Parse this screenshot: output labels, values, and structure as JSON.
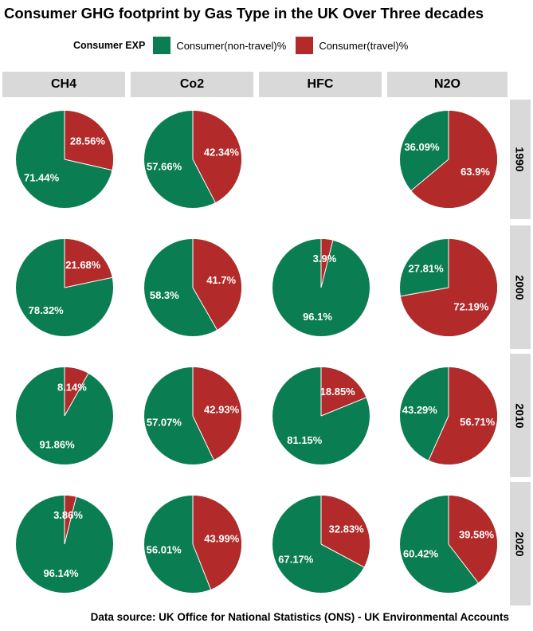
{
  "title": "Consumer GHG footprint by Gas Type in the UK Over Three decades",
  "caption": "Data source: UK Office for National Statistics (ONS) - UK Environmental Accounts",
  "legend": {
    "title": "Consumer EXP",
    "items": [
      {
        "label": "Consumer(non-travel)%",
        "color": "#0b7d52"
      },
      {
        "label": "Consumer(travel)%",
        "color": "#b22a2a"
      }
    ]
  },
  "chart_data": {
    "type": "pie",
    "facet_cols": [
      "CH4",
      "Co2",
      "HFC",
      "N2O"
    ],
    "facet_rows": [
      "1990",
      "2000",
      "2010",
      "2020"
    ],
    "series_names": [
      "Consumer(non-travel)%",
      "Consumer(travel)%"
    ],
    "panels": [
      {
        "col": "CH4",
        "row": "1990",
        "non_travel": 71.44,
        "travel": 28.56
      },
      {
        "col": "Co2",
        "row": "1990",
        "non_travel": 57.66,
        "travel": 42.34
      },
      {
        "col": "HFC",
        "row": "1990",
        "non_travel": null,
        "travel": null
      },
      {
        "col": "N2O",
        "row": "1990",
        "non_travel": 36.09,
        "travel": 63.9
      },
      {
        "col": "CH4",
        "row": "2000",
        "non_travel": 78.32,
        "travel": 21.68
      },
      {
        "col": "Co2",
        "row": "2000",
        "non_travel": 58.3,
        "travel": 41.7
      },
      {
        "col": "HFC",
        "row": "2000",
        "non_travel": 96.1,
        "travel": 3.9
      },
      {
        "col": "N2O",
        "row": "2000",
        "non_travel": 27.81,
        "travel": 72.19
      },
      {
        "col": "CH4",
        "row": "2010",
        "non_travel": 91.86,
        "travel": 8.14
      },
      {
        "col": "Co2",
        "row": "2010",
        "non_travel": 57.07,
        "travel": 42.93
      },
      {
        "col": "HFC",
        "row": "2010",
        "non_travel": 81.15,
        "travel": 18.85
      },
      {
        "col": "N2O",
        "row": "2010",
        "non_travel": 43.29,
        "travel": 56.71
      },
      {
        "col": "CH4",
        "row": "2020",
        "non_travel": 96.14,
        "travel": 3.86
      },
      {
        "col": "Co2",
        "row": "2020",
        "non_travel": 56.01,
        "travel": 43.99
      },
      {
        "col": "HFC",
        "row": "2020",
        "non_travel": 67.17,
        "travel": 32.83
      },
      {
        "col": "N2O",
        "row": "2020",
        "non_travel": 60.42,
        "travel": 39.58
      }
    ]
  }
}
